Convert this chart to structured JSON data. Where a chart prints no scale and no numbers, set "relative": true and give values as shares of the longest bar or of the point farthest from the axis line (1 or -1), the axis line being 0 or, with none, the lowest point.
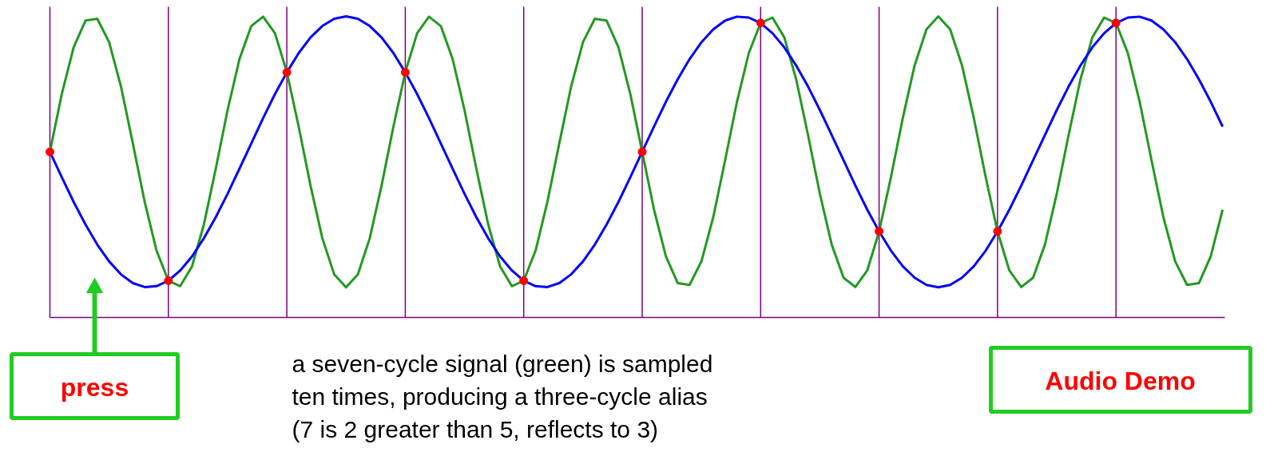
{
  "chart_data": {
    "type": "line",
    "relative": true,
    "line_style": "solid",
    "categories": [
      null,
      null,
      null,
      null,
      null,
      null,
      null,
      null,
      null,
      null,
      null,
      null,
      null,
      null,
      null,
      null,
      null,
      null,
      null,
      null,
      null,
      null,
      null,
      null,
      null,
      null,
      null,
      null,
      null,
      null,
      null,
      null,
      null,
      null,
      null,
      null,
      null,
      null,
      null,
      null,
      null,
      null,
      null,
      null,
      null,
      null,
      null,
      null,
      null,
      null,
      null,
      null,
      null,
      null,
      null,
      null,
      null,
      null,
      null,
      null,
      null,
      null,
      null,
      null,
      null,
      null,
      null,
      null,
      null,
      null,
      null,
      null,
      null,
      null,
      null,
      null,
      null,
      null,
      null,
      null,
      null,
      null,
      null,
      null,
      null,
      null,
      null,
      null,
      null,
      null,
      null,
      null,
      null,
      null,
      null,
      null,
      null,
      null,
      null,
      null
    ],
    "series": [
      {
        "color": "#229922",
        "values": [
          0.55,
          0.742,
          0.897,
          0.986,
          0.992,
          0.914,
          0.767,
          0.578,
          0.384,
          0.222,
          0.122,
          0.104,
          0.17,
          0.309,
          0.494,
          0.689,
          0.858,
          0.968,
          0.999,
          0.944,
          0.815,
          0.634,
          0.438,
          0.263,
          0.143,
          0.1,
          0.143,
          0.263,
          0.438,
          0.634,
          0.815,
          0.944,
          0.999,
          0.968,
          0.858,
          0.689,
          0.494,
          0.309,
          0.17,
          0.104,
          0.122,
          0.222,
          0.384,
          0.578,
          0.767,
          0.914,
          0.992,
          0.986,
          0.897,
          0.742,
          0.55,
          0.358,
          0.203,
          0.114,
          0.108,
          0.186,
          0.333,
          0.522,
          0.716,
          0.878,
          0.978,
          0.996,
          0.93,
          0.791,
          0.606,
          0.411,
          0.242,
          0.132,
          0.101,
          0.156,
          0.285,
          0.466,
          0.662,
          0.837,
          0.957,
          1.0,
          0.957,
          0.837,
          0.662,
          0.466,
          0.285,
          0.156,
          0.101,
          0.132,
          0.242,
          0.411,
          0.606,
          0.791,
          0.93,
          0.996,
          0.978,
          0.878,
          0.716,
          0.522,
          0.333,
          0.186,
          0.108,
          0.114,
          0.203,
          0.358
        ]
      },
      {
        "color": "#0000ff",
        "values": [
          0.55,
          0.466,
          0.384,
          0.309,
          0.242,
          0.186,
          0.143,
          0.114,
          0.101,
          0.104,
          0.122,
          0.156,
          0.203,
          0.263,
          0.333,
          0.411,
          0.494,
          0.578,
          0.662,
          0.742,
          0.814,
          0.878,
          0.93,
          0.968,
          0.992,
          1.0,
          0.992,
          0.968,
          0.93,
          0.878,
          0.814,
          0.742,
          0.662,
          0.578,
          0.494,
          0.411,
          0.333,
          0.263,
          0.203,
          0.156,
          0.122,
          0.104,
          0.101,
          0.114,
          0.143,
          0.186,
          0.242,
          0.309,
          0.384,
          0.466,
          0.55,
          0.634,
          0.716,
          0.791,
          0.858,
          0.914,
          0.957,
          0.986,
          0.999,
          0.996,
          0.978,
          0.944,
          0.897,
          0.837,
          0.767,
          0.689,
          0.606,
          0.522,
          0.438,
          0.358,
          0.286,
          0.222,
          0.17,
          0.132,
          0.108,
          0.1,
          0.108,
          0.132,
          0.17,
          0.222,
          0.286,
          0.358,
          0.438,
          0.522,
          0.606,
          0.689,
          0.767,
          0.837,
          0.897,
          0.944,
          0.978,
          0.996,
          0.999,
          0.986,
          0.957,
          0.914,
          0.858,
          0.791,
          0.716,
          0.634
        ]
      }
    ],
    "grid": "x",
    "annotations": [
      "a seven-cycle signal (green) is sampled\nten times, producing a three-cycle alias\n(7 is 2 greater than 5, reflects to 3)",
      "press",
      "Audio Demo"
    ]
  }
}
